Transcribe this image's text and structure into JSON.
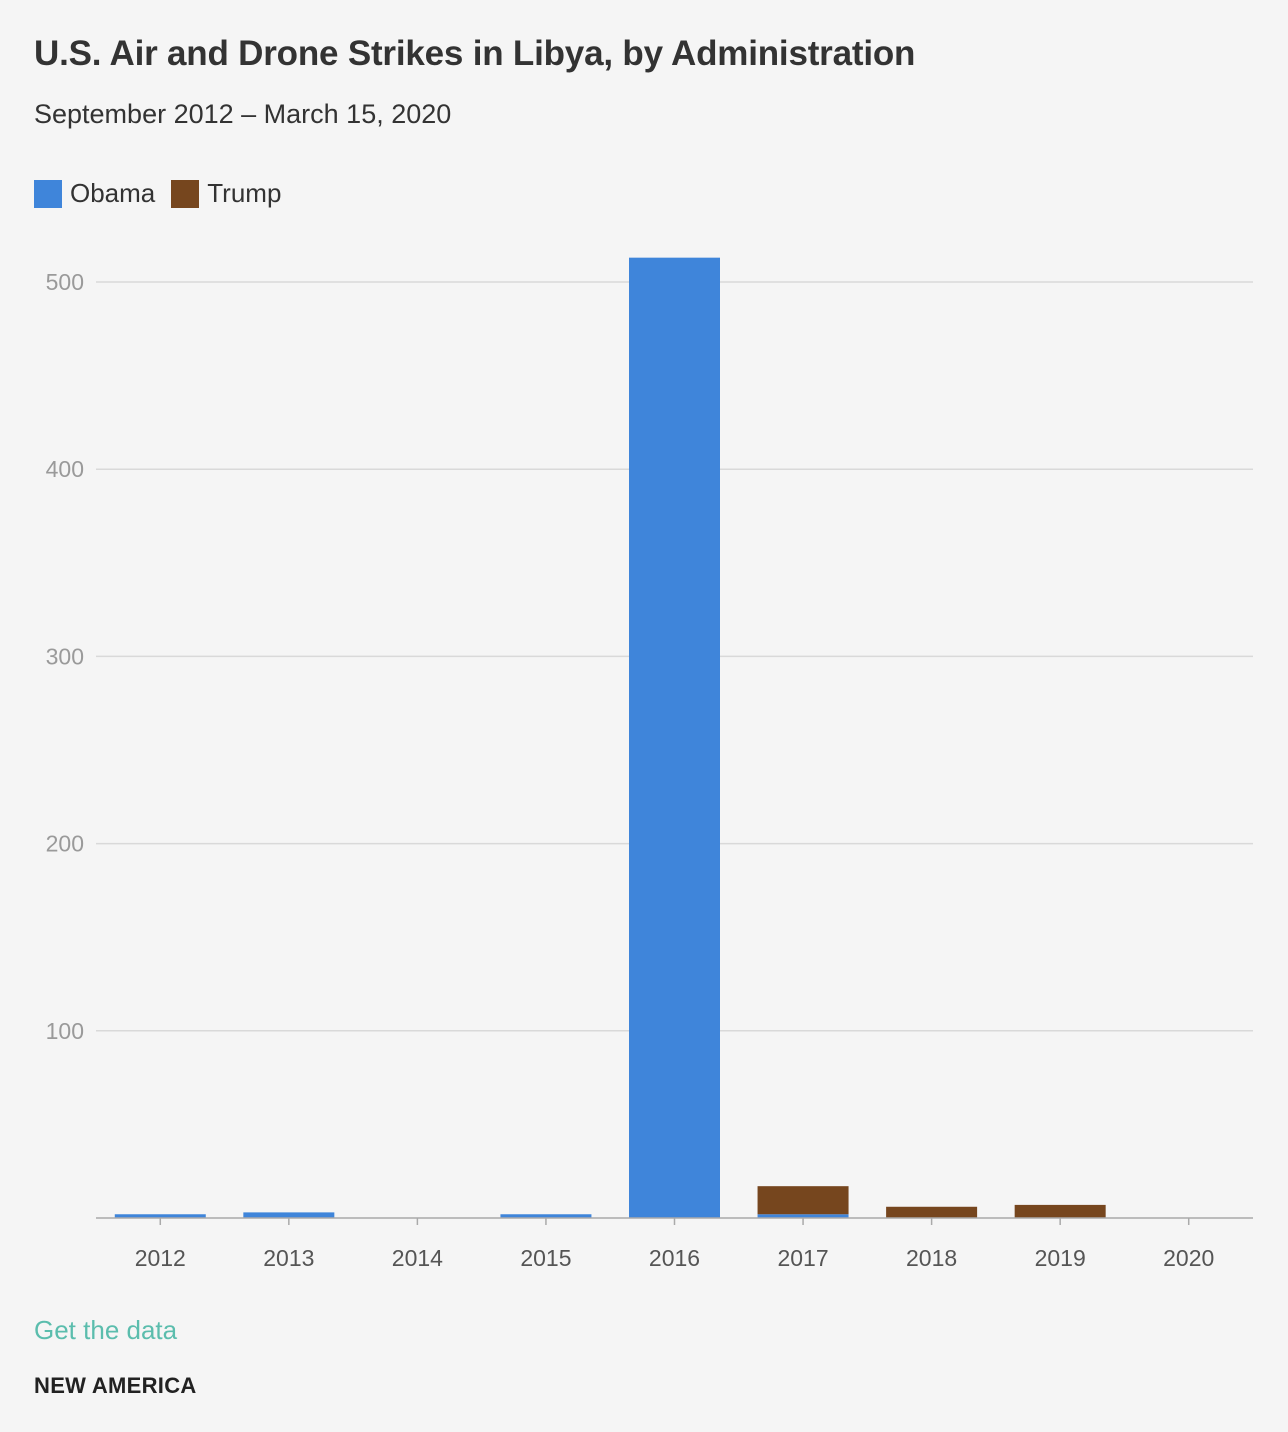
{
  "colors": {
    "obama": "#3f85da",
    "trump": "#76461e",
    "grid": "#d9d9d9",
    "axis": "#aaaaaa",
    "link": "#5bbdad"
  },
  "footer": {
    "link_label": "Get the data",
    "brand": "NEW AMERICA"
  },
  "chart_data": {
    "type": "bar",
    "stacked": true,
    "title": "U.S. Air and Drone Strikes in Libya, by Administration",
    "subtitle": "September 2012 – March 15, 2020",
    "xlabel": "",
    "ylabel": "",
    "categories": [
      "2012",
      "2013",
      "2014",
      "2015",
      "2016",
      "2017",
      "2018",
      "2019",
      "2020"
    ],
    "series": [
      {
        "name": "Obama",
        "values": [
          2,
          3,
          0,
          2,
          513,
          2,
          0,
          0,
          0
        ]
      },
      {
        "name": "Trump",
        "values": [
          0,
          0,
          0,
          0,
          0,
          15,
          6,
          7,
          0
        ]
      }
    ],
    "ylim": [
      0,
      515
    ],
    "yticks": [
      100,
      200,
      300,
      400,
      500
    ],
    "grid": true,
    "legend": "top-left"
  }
}
